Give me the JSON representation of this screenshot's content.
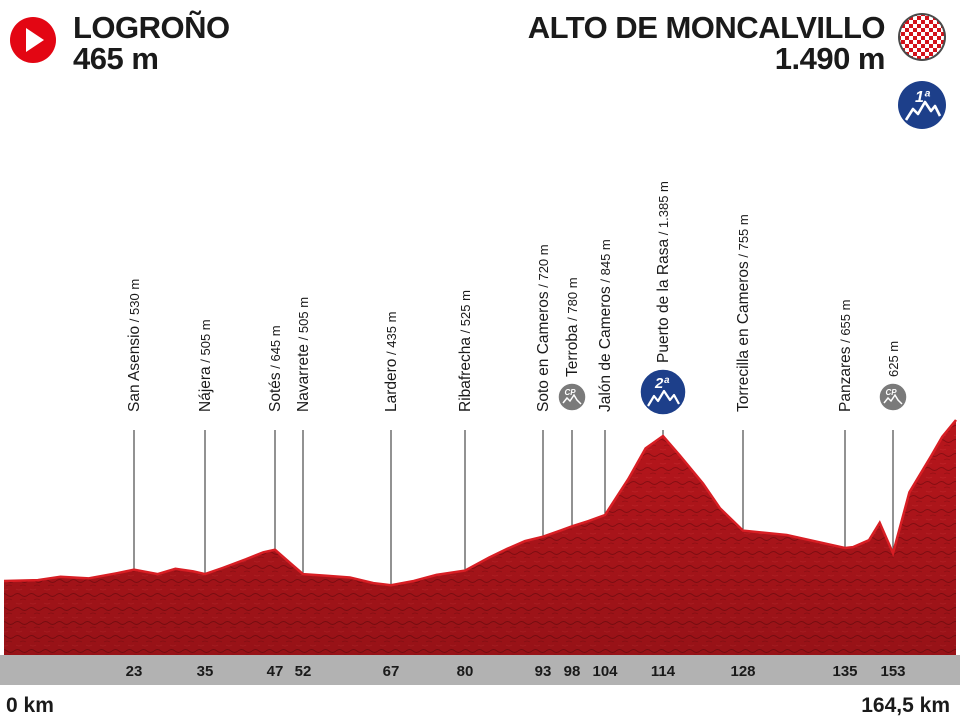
{
  "start": {
    "name": "LOGROÑO",
    "altitude": "465 m",
    "icon": "start-arrow-icon",
    "color": "#e30613"
  },
  "finish": {
    "name": "ALTO DE MONCALVILLO",
    "altitude": "1.490 m",
    "icon": "finish-checkered-flag-icon",
    "cat_badge": "1ª",
    "cat_badge_color": "#1d3f8a"
  },
  "distance": {
    "start_label": "0 km",
    "end_label": "164,5 km"
  },
  "chart_data": {
    "type": "area",
    "title": "",
    "xlabel": "",
    "ylabel": "",
    "xlim": [
      0,
      164.5
    ],
    "ylim": [
      300,
      1600
    ],
    "colors": {
      "fill": "#b8161c",
      "fill_dark": "#8c0e13",
      "band": "#b2b2b2",
      "leader": "#4a4a4a",
      "badge_blue": "#1d3f8a",
      "badge_grey": "#7a7a7a"
    },
    "profile": [
      [
        0,
        465
      ],
      [
        6,
        470
      ],
      [
        10,
        490
      ],
      [
        15,
        480
      ],
      [
        20,
        510
      ],
      [
        23,
        530
      ],
      [
        27,
        505
      ],
      [
        30,
        535
      ],
      [
        33,
        520
      ],
      [
        35,
        505
      ],
      [
        38,
        540
      ],
      [
        42,
        590
      ],
      [
        45,
        630
      ],
      [
        47,
        645
      ],
      [
        50,
        560
      ],
      [
        52,
        505
      ],
      [
        56,
        495
      ],
      [
        60,
        485
      ],
      [
        64,
        450
      ],
      [
        67,
        435
      ],
      [
        71,
        465
      ],
      [
        75,
        500
      ],
      [
        80,
        525
      ],
      [
        84,
        600
      ],
      [
        87,
        650
      ],
      [
        90,
        695
      ],
      [
        93,
        720
      ],
      [
        96,
        755
      ],
      [
        98,
        780
      ],
      [
        101,
        810
      ],
      [
        104,
        845
      ],
      [
        108,
        1090
      ],
      [
        111,
        1300
      ],
      [
        114,
        1385
      ],
      [
        117,
        1250
      ],
      [
        121,
        1060
      ],
      [
        124,
        890
      ],
      [
        128,
        755
      ],
      [
        131,
        730
      ],
      [
        135,
        655
      ],
      [
        138,
        660
      ],
      [
        141,
        680
      ],
      [
        144,
        700
      ],
      [
        148,
        800
      ],
      [
        153,
        625
      ],
      [
        156,
        1000
      ],
      [
        160,
        1250
      ],
      [
        162,
        1380
      ],
      [
        164.5,
        1490
      ]
    ],
    "points": [
      {
        "name": "San Asensio",
        "km": 23,
        "alt": 530,
        "label": "San Asensio",
        "alt_label": " / 530 m",
        "km_label": "23",
        "badge": null
      },
      {
        "name": "Nájera",
        "km": 35,
        "alt": 505,
        "label": "Nájera",
        "alt_label": " / 505 m",
        "km_label": "35",
        "badge": null
      },
      {
        "name": "Sotés",
        "km": 47,
        "alt": 645,
        "label": "Sotés",
        "alt_label": " / 645 m",
        "km_label": "47",
        "badge": null
      },
      {
        "name": "Navarrete",
        "km": 52,
        "alt": 505,
        "label": "Navarrete",
        "alt_label": " / 505 m",
        "km_label": "52",
        "badge": null
      },
      {
        "name": "Lardero",
        "km": 67,
        "alt": 435,
        "label": "Lardero",
        "alt_label": " / 435 m",
        "km_label": "67",
        "badge": null
      },
      {
        "name": "Ribafrecha",
        "km": 80,
        "alt": 525,
        "label": "Ribafrecha",
        "alt_label": " / 525 m",
        "km_label": "80",
        "badge": null
      },
      {
        "name": "Soto en Cameros",
        "km": 93,
        "alt": 720,
        "label": "Soto en Cameros",
        "alt_label": " / 720 m",
        "km_label": "93",
        "badge": null
      },
      {
        "name": "Terroba",
        "km": 98,
        "alt": 780,
        "label": "Terroba",
        "alt_label": " / 780 m",
        "km_label": "98",
        "badge": "cp"
      },
      {
        "name": "Jalón de Cameros",
        "km": 104,
        "alt": 845,
        "label": "Jalón de Cameros",
        "alt_label": " / 845 m",
        "km_label": "104",
        "badge": null
      },
      {
        "name": "Puerto de la Rasa",
        "km": 114,
        "alt": 1385,
        "label": "Puerto de la Rasa",
        "alt_label": " / 1.385 m",
        "km_label": "114",
        "badge": "2ª"
      },
      {
        "name": "Torrecilla en Cameros",
        "km": 128,
        "alt": 755,
        "label": "Torrecilla en Cameros",
        "alt_label": " / 755 m",
        "km_label": "128",
        "badge": null
      },
      {
        "name": "Panzares",
        "km": 135,
        "alt": 655,
        "label": "Panzares",
        "alt_label": " / 655 m",
        "km_label": "135",
        "badge": null
      },
      {
        "name": "625 m",
        "km": 153,
        "alt": 625,
        "label": "",
        "alt_label": "625 m",
        "km_label": "153",
        "badge": "cp"
      }
    ]
  }
}
